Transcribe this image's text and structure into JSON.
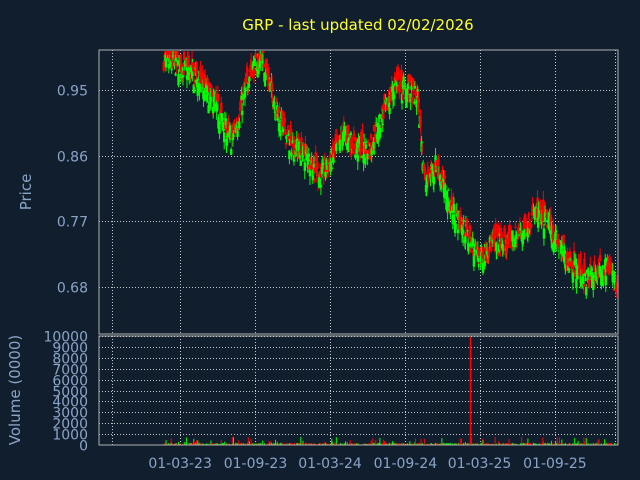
{
  "colors": {
    "background": "#111e2e",
    "title": "#ffff33",
    "axis_text": "#8aa4c8",
    "grid": "#c8c8c8",
    "up": "#00ff00",
    "down": "#ff0000"
  },
  "chart_data": [
    {
      "type": "candlestick",
      "title": "GRP - last updated 02/02/2026",
      "ylabel": "Price",
      "ylim": [
        0.615,
        1.005
      ],
      "yticks": [
        "0.95",
        "0.86",
        "0.77",
        "0.68"
      ],
      "ytick_values": [
        0.95,
        0.86,
        0.77,
        0.68
      ],
      "x_dates": [
        "2022-08-15",
        "2026-02-02"
      ],
      "x_tick_dates": [
        "2022-09-15",
        "2023-03-01",
        "2023-09-01",
        "2024-03-01",
        "2024-09-01",
        "2025-03-01",
        "2025-09-01",
        "2026-01-25"
      ],
      "close_path": [
        {
          "date": "2022-08-15",
          "close": null
        },
        {
          "date": "2023-01-20",
          "close": 0.99
        },
        {
          "date": "2023-03-15",
          "close": 0.98
        },
        {
          "date": "2023-04-20",
          "close": 0.96
        },
        {
          "date": "2023-05-25",
          "close": 0.93
        },
        {
          "date": "2023-07-05",
          "close": 0.88
        },
        {
          "date": "2023-07-25",
          "close": 0.92
        },
        {
          "date": "2023-08-20",
          "close": 0.98
        },
        {
          "date": "2023-09-20",
          "close": 0.99
        },
        {
          "date": "2023-10-20",
          "close": 0.93
        },
        {
          "date": "2023-11-20",
          "close": 0.88
        },
        {
          "date": "2024-01-05",
          "close": 0.86
        },
        {
          "date": "2024-02-05",
          "close": 0.83
        },
        {
          "date": "2024-03-01",
          "close": 0.85
        },
        {
          "date": "2024-04-05",
          "close": 0.89
        },
        {
          "date": "2024-05-05",
          "close": 0.87
        },
        {
          "date": "2024-06-05",
          "close": 0.87
        },
        {
          "date": "2024-07-05",
          "close": 0.91
        },
        {
          "date": "2024-08-10",
          "close": 0.96
        },
        {
          "date": "2024-09-05",
          "close": 0.95
        },
        {
          "date": "2024-10-01",
          "close": 0.94
        },
        {
          "date": "2024-10-20",
          "close": 0.82
        },
        {
          "date": "2024-11-15",
          "close": 0.85
        },
        {
          "date": "2024-12-20",
          "close": 0.79
        },
        {
          "date": "2025-01-20",
          "close": 0.76
        },
        {
          "date": "2025-03-01",
          "close": 0.72
        },
        {
          "date": "2025-04-01",
          "close": 0.74
        },
        {
          "date": "2025-05-05",
          "close": 0.74
        },
        {
          "date": "2025-06-05",
          "close": 0.75
        },
        {
          "date": "2025-07-15",
          "close": 0.78
        },
        {
          "date": "2025-08-15",
          "close": 0.77
        },
        {
          "date": "2025-09-15",
          "close": 0.73
        },
        {
          "date": "2025-10-15",
          "close": 0.71
        },
        {
          "date": "2025-11-15",
          "close": 0.69
        },
        {
          "date": "2025-12-15",
          "close": 0.7
        },
        {
          "date": "2026-01-10",
          "close": 0.71
        },
        {
          "date": "2026-02-02",
          "close": 0.67
        }
      ]
    },
    {
      "type": "bar",
      "ylabel": "Volume (0000)",
      "ylim": [
        0,
        10000
      ],
      "yticks": [
        "10000",
        "9000",
        "8000",
        "7000",
        "6000",
        "5000",
        "4000",
        "3000",
        "2000",
        "1000",
        "0"
      ],
      "ytick_values": [
        10000,
        9000,
        8000,
        7000,
        6000,
        5000,
        4000,
        3000,
        2000,
        1000,
        0
      ],
      "xticks": [
        "01-03-23",
        "01-09-23",
        "01-03-24",
        "01-09-24",
        "01-03-25",
        "01-09-25"
      ],
      "x_tick_dates": [
        "2022-09-15",
        "2023-03-01",
        "2023-09-01",
        "2024-03-01",
        "2024-09-01",
        "2025-03-01",
        "2025-09-01",
        "2026-01-25"
      ],
      "notable_bars": [
        {
          "date": "2025-02-05",
          "volume": 9900,
          "direction": "down"
        }
      ],
      "baseline_volume_range": [
        0,
        500
      ]
    }
  ]
}
